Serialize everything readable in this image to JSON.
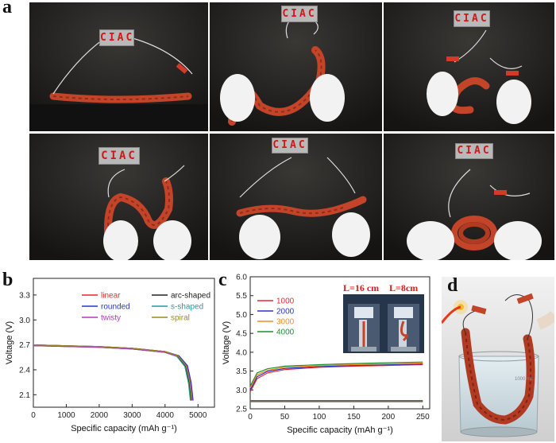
{
  "panel_labels": {
    "a": "a",
    "b": "b",
    "c": "c",
    "d": "d"
  },
  "photos": {
    "sign_text": "CIAC",
    "shapes": [
      "linear",
      "arc-shaped",
      "rounded",
      "s-shaped",
      "twisty",
      "spiral"
    ],
    "inset_lengths": [
      "L=16 cm",
      "L=8cm"
    ],
    "beaker_label": "1000 mL"
  },
  "colors": {
    "photo_bg": "#22211f",
    "cable": "#c4442a",
    "glove": "#f2f2f2",
    "sign_text": "#d01818"
  },
  "chart_data": [
    {
      "id": "b",
      "type": "line",
      "xlabel": "Specific capacity (mAh g⁻¹)",
      "ylabel": "Voltage (V)",
      "xlim": [
        0,
        5500
      ],
      "ylim": [
        1.95,
        3.5
      ],
      "xticks": [
        0,
        1000,
        2000,
        3000,
        4000,
        5000
      ],
      "yticks": [
        2.1,
        2.4,
        2.7,
        3.0,
        3.3
      ],
      "legend_position": "top-center",
      "series": [
        {
          "name": "linear",
          "color": "#e8262c",
          "x": [
            0,
            1000,
            2000,
            3000,
            4000,
            4400,
            4650,
            4760,
            4820
          ],
          "y": [
            2.7,
            2.69,
            2.68,
            2.66,
            2.62,
            2.57,
            2.45,
            2.25,
            2.03
          ]
        },
        {
          "name": "arc-shaped",
          "color": "#222222",
          "x": [
            0,
            1000,
            2000,
            3000,
            4000,
            4380,
            4620,
            4730,
            4790
          ],
          "y": [
            2.69,
            2.68,
            2.67,
            2.65,
            2.61,
            2.56,
            2.44,
            2.24,
            2.03
          ]
        },
        {
          "name": "rounded",
          "color": "#2635c9",
          "x": [
            0,
            1000,
            2000,
            3000,
            4000,
            4420,
            4680,
            4790,
            4850
          ],
          "y": [
            2.7,
            2.69,
            2.68,
            2.66,
            2.62,
            2.57,
            2.45,
            2.25,
            2.03
          ]
        },
        {
          "name": "s-shaped",
          "color": "#1f9c9c",
          "x": [
            0,
            1000,
            2000,
            3000,
            4000,
            4360,
            4600,
            4710,
            4770
          ],
          "y": [
            2.7,
            2.69,
            2.67,
            2.65,
            2.61,
            2.56,
            2.44,
            2.24,
            2.03
          ]
        },
        {
          "name": "twisty",
          "color": "#b23ab5",
          "x": [
            0,
            1000,
            2000,
            3000,
            4000,
            4400,
            4660,
            4770,
            4830
          ],
          "y": [
            2.69,
            2.68,
            2.67,
            2.65,
            2.61,
            2.56,
            2.44,
            2.24,
            2.03
          ]
        },
        {
          "name": "spiral",
          "color": "#9a8a1e",
          "x": [
            0,
            1000,
            2000,
            3000,
            4000,
            4390,
            4640,
            4750,
            4810
          ],
          "y": [
            2.7,
            2.69,
            2.68,
            2.66,
            2.62,
            2.57,
            2.45,
            2.25,
            2.03
          ]
        }
      ]
    },
    {
      "id": "c",
      "type": "line",
      "xlabel": "Specific capacity (mAh g⁻¹)",
      "ylabel": "Voltage (V)",
      "xlim": [
        0,
        260
      ],
      "ylim": [
        2.5,
        6.0
      ],
      "xticks": [
        0,
        50,
        100,
        150,
        200,
        250
      ],
      "yticks": [
        2.5,
        3.0,
        3.5,
        4.0,
        4.5,
        5.0,
        5.5,
        6.0
      ],
      "legend_position": "top-left",
      "series": [
        {
          "name": "1000",
          "color": "#e8262c",
          "charge": {
            "x": [
              0,
              10,
              25,
              50,
              100,
              150,
              200,
              250
            ],
            "y": [
              2.95,
              3.3,
              3.45,
              3.54,
              3.6,
              3.63,
              3.65,
              3.67
            ]
          },
          "discharge": {
            "x": [
              0,
              250
            ],
            "y": [
              2.69,
              2.69
            ]
          }
        },
        {
          "name": "2000",
          "color": "#2635c9",
          "charge": {
            "x": [
              0,
              10,
              25,
              50,
              100,
              150,
              200,
              250
            ],
            "y": [
              3.0,
              3.35,
              3.49,
              3.57,
              3.62,
              3.65,
              3.67,
              3.69
            ]
          },
          "discharge": {
            "x": [
              0,
              250
            ],
            "y": [
              2.7,
              2.7
            ]
          }
        },
        {
          "name": "3000",
          "color": "#f08a1c",
          "charge": {
            "x": [
              0,
              10,
              25,
              50,
              100,
              150,
              200,
              250
            ],
            "y": [
              3.05,
              3.4,
              3.52,
              3.6,
              3.64,
              3.67,
              3.69,
              3.71
            ]
          },
          "discharge": {
            "x": [
              0,
              250
            ],
            "y": [
              2.71,
              2.71
            ]
          }
        },
        {
          "name": "4000",
          "color": "#1f8f2e",
          "charge": {
            "x": [
              0,
              10,
              25,
              50,
              100,
              150,
              200,
              250
            ],
            "y": [
              3.1,
              3.45,
              3.56,
              3.63,
              3.67,
              3.7,
              3.72,
              3.74
            ]
          },
          "discharge": {
            "x": [
              0,
              250
            ],
            "y": [
              2.72,
              2.72
            ]
          }
        }
      ]
    }
  ]
}
